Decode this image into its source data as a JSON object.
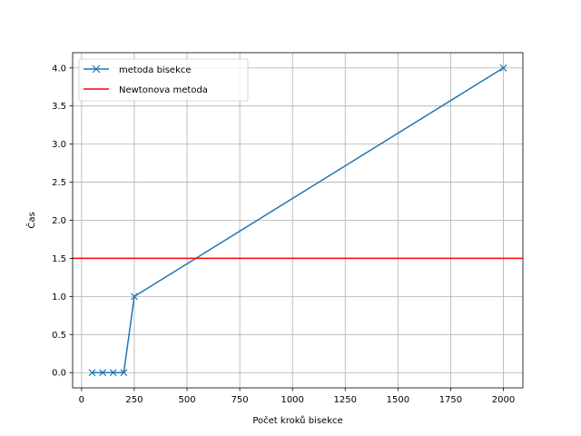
{
  "chart_data": {
    "type": "line",
    "title": "",
    "xlabel": "Počet kroků bisekce",
    "ylabel": "Čas",
    "xlim": [
      -42.5,
      2092.5
    ],
    "ylim": [
      -0.2,
      4.2
    ],
    "xticks": [
      0,
      250,
      500,
      750,
      1000,
      1250,
      1500,
      1750,
      2000
    ],
    "yticks": [
      0.0,
      0.5,
      1.0,
      1.5,
      2.0,
      2.5,
      3.0,
      3.5,
      4.0
    ],
    "xtick_labels": [
      "0",
      "250",
      "500",
      "750",
      "1000",
      "1250",
      "1500",
      "1750",
      "2000"
    ],
    "ytick_labels": [
      "0.0",
      "0.5",
      "1.0",
      "1.5",
      "2.0",
      "2.5",
      "3.0",
      "3.5",
      "4.0"
    ],
    "grid": true,
    "legend_position": "top-left",
    "series": [
      {
        "name": "metoda bisekce",
        "kind": "line",
        "marker": "x",
        "color": "#1f77b4",
        "x": [
          50,
          100,
          150,
          200,
          250,
          2000
        ],
        "y": [
          0,
          0,
          0,
          0,
          1,
          4
        ]
      },
      {
        "name": "Newtonova metoda",
        "kind": "hline",
        "color": "#ff0000",
        "y": 1.5
      }
    ]
  }
}
